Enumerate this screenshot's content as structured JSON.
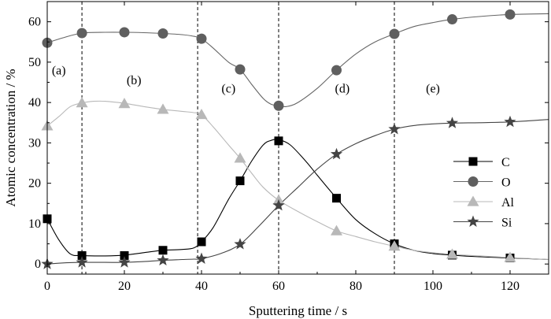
{
  "chart_data": {
    "type": "line",
    "xlabel": "Sputtering time / s",
    "ylabel": "Atomic concentration / %",
    "xlim": [
      0,
      130
    ],
    "ylim": [
      -2.5,
      65
    ],
    "xticks": [
      0,
      20,
      40,
      60,
      80,
      100,
      120
    ],
    "yticks": [
      0,
      10,
      20,
      30,
      40,
      50,
      60
    ],
    "grid": false,
    "legend_position": "right",
    "vlines": [
      9,
      39,
      60,
      90
    ],
    "regions": [
      {
        "label": "(a)",
        "x": 3,
        "y": 47
      },
      {
        "label": "(b)",
        "x": 22.5,
        "y": 44.5
      },
      {
        "label": "(c)",
        "x": 47,
        "y": 42.5
      },
      {
        "label": "(d)",
        "x": 76.5,
        "y": 42.5
      },
      {
        "label": "(e)",
        "x": 100,
        "y": 42.5
      }
    ],
    "series": [
      {
        "name": "C",
        "marker": "square",
        "marker_color": "#000000",
        "line_color": "#000000",
        "x": [
          0,
          9,
          20,
          30,
          40,
          50,
          60,
          75,
          90,
          105,
          120
        ],
        "y": [
          11.2,
          2.1,
          2.1,
          3.4,
          5.5,
          20.6,
          30.5,
          16.3,
          5,
          2.2,
          1.5
        ],
        "curve": [
          [
            0,
            11.2
          ],
          [
            3,
            6
          ],
          [
            6,
            2.5
          ],
          [
            9,
            2.1
          ],
          [
            15,
            2
          ],
          [
            20,
            2.2
          ],
          [
            25,
            2.8
          ],
          [
            30,
            3.4
          ],
          [
            35,
            3.6
          ],
          [
            38,
            4
          ],
          [
            40,
            5.5
          ],
          [
            43,
            9
          ],
          [
            47,
            16
          ],
          [
            50,
            20.6
          ],
          [
            53,
            25.5
          ],
          [
            56,
            29.5
          ],
          [
            58,
            30.6
          ],
          [
            60,
            30.8
          ],
          [
            63,
            29.5
          ],
          [
            67,
            25.5
          ],
          [
            70,
            22
          ],
          [
            75,
            16.3
          ],
          [
            80,
            11
          ],
          [
            85,
            7.5
          ],
          [
            90,
            5
          ],
          [
            95,
            3.4
          ],
          [
            100,
            2.6
          ],
          [
            105,
            2.2
          ],
          [
            112,
            1.8
          ],
          [
            120,
            1.5
          ],
          [
            130,
            1.1
          ]
        ]
      },
      {
        "name": "O",
        "marker": "circle",
        "marker_color": "#5f5f5f",
        "line_color": "#666666",
        "x": [
          0,
          9,
          20,
          30,
          40,
          50,
          60,
          75,
          90,
          105,
          120
        ],
        "y": [
          54.8,
          57.2,
          57.4,
          57.1,
          55.8,
          48.2,
          39.2,
          48,
          57,
          60.6,
          61.8
        ],
        "curve": [
          [
            0,
            54.8
          ],
          [
            4,
            56
          ],
          [
            9,
            57.2
          ],
          [
            15,
            57.4
          ],
          [
            20,
            57.4
          ],
          [
            25,
            57.3
          ],
          [
            30,
            57.1
          ],
          [
            35,
            56.8
          ],
          [
            38,
            56.4
          ],
          [
            40,
            55.8
          ],
          [
            43,
            53.5
          ],
          [
            47,
            50
          ],
          [
            50,
            48.2
          ],
          [
            53,
            44.5
          ],
          [
            56,
            41
          ],
          [
            58,
            39.6
          ],
          [
            60,
            39.2
          ],
          [
            62,
            39
          ],
          [
            65,
            40
          ],
          [
            70,
            43.5
          ],
          [
            75,
            48
          ],
          [
            80,
            52
          ],
          [
            85,
            55
          ],
          [
            90,
            57
          ],
          [
            95,
            58.8
          ],
          [
            100,
            59.8
          ],
          [
            105,
            60.6
          ],
          [
            112,
            61.3
          ],
          [
            120,
            61.8
          ],
          [
            130,
            62
          ]
        ]
      },
      {
        "name": "Al",
        "marker": "triangle",
        "marker_color": "#b8b8b8",
        "line_color": "#b8b8b8",
        "x": [
          0,
          9,
          20,
          30,
          40,
          50,
          60,
          75,
          90,
          105,
          120
        ],
        "y": [
          34.2,
          39.9,
          39.7,
          38.3,
          37,
          26.2,
          15.8,
          8.2,
          4.4,
          2.4,
          1.6
        ],
        "curve": [
          [
            0,
            34.2
          ],
          [
            3,
            36.5
          ],
          [
            6,
            39
          ],
          [
            9,
            39.9
          ],
          [
            12,
            40.3
          ],
          [
            15,
            40.3
          ],
          [
            20,
            39.8
          ],
          [
            25,
            39
          ],
          [
            30,
            38.3
          ],
          [
            35,
            37.8
          ],
          [
            38,
            37.5
          ],
          [
            40,
            37
          ],
          [
            43,
            34
          ],
          [
            47,
            29.5
          ],
          [
            50,
            26.2
          ],
          [
            53,
            22.5
          ],
          [
            56,
            19
          ],
          [
            60,
            15.8
          ],
          [
            65,
            13
          ],
          [
            70,
            10.5
          ],
          [
            75,
            8.2
          ],
          [
            80,
            6.8
          ],
          [
            85,
            5.5
          ],
          [
            90,
            4.4
          ],
          [
            95,
            3.4
          ],
          [
            100,
            2.8
          ],
          [
            105,
            2.4
          ],
          [
            112,
            2
          ],
          [
            120,
            1.6
          ],
          [
            130,
            1.1
          ]
        ]
      },
      {
        "name": "Si",
        "marker": "star",
        "marker_color": "#444444",
        "line_color": "#444444",
        "x": [
          0,
          9,
          20,
          30,
          40,
          50,
          60,
          75,
          90,
          105,
          120
        ],
        "y": [
          0,
          0.4,
          0.4,
          0.9,
          1.3,
          4.9,
          14.5,
          27.2,
          33.4,
          34.9,
          35.2
        ],
        "curve": [
          [
            0,
            0
          ],
          [
            5,
            0.3
          ],
          [
            9,
            0.4
          ],
          [
            15,
            0.4
          ],
          [
            20,
            0.4
          ],
          [
            25,
            0.6
          ],
          [
            30,
            0.9
          ],
          [
            35,
            1.1
          ],
          [
            38,
            1.2
          ],
          [
            40,
            1.3
          ],
          [
            45,
            2.6
          ],
          [
            50,
            4.9
          ],
          [
            55,
            9.5
          ],
          [
            60,
            14.5
          ],
          [
            65,
            19
          ],
          [
            70,
            23.5
          ],
          [
            75,
            27.2
          ],
          [
            80,
            29.8
          ],
          [
            85,
            31.8
          ],
          [
            90,
            33.4
          ],
          [
            95,
            34.3
          ],
          [
            100,
            34.7
          ],
          [
            105,
            34.9
          ],
          [
            112,
            35
          ],
          [
            120,
            35.2
          ],
          [
            130,
            35.8
          ]
        ]
      }
    ]
  }
}
